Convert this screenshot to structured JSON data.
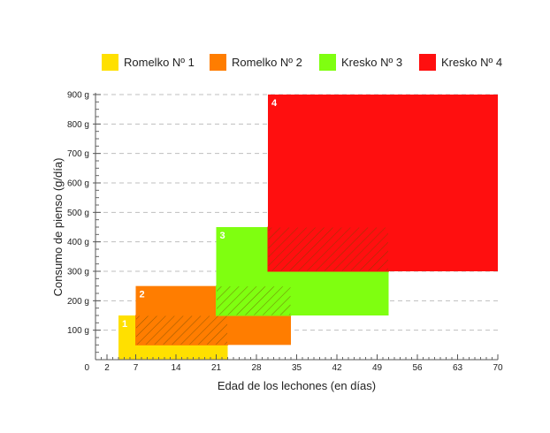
{
  "chart_data": {
    "type": "range-rectangles",
    "xlabel": "Edad de los lechones (en días)",
    "ylabel": "Consumo de pienso (g/día)",
    "xlim": [
      0,
      70
    ],
    "ylim": [
      0,
      900
    ],
    "x_ticks": [
      {
        "value": 2,
        "label": "2"
      },
      {
        "value": 7,
        "label": "7"
      },
      {
        "value": 14,
        "label": "14"
      },
      {
        "value": 21,
        "label": "21"
      },
      {
        "value": 28,
        "label": "28"
      },
      {
        "value": 35,
        "label": "35"
      },
      {
        "value": 42,
        "label": "42"
      },
      {
        "value": 49,
        "label": "49"
      },
      {
        "value": 56,
        "label": "56"
      },
      {
        "value": 63,
        "label": "63"
      },
      {
        "value": 70,
        "label": "70"
      }
    ],
    "x_origin_label": "0",
    "y_ticks": [
      {
        "value": 100,
        "label": "100 g"
      },
      {
        "value": 200,
        "label": "200 g"
      },
      {
        "value": 300,
        "label": "300 g"
      },
      {
        "value": 400,
        "label": "400 g"
      },
      {
        "value": 500,
        "label": "500 g"
      },
      {
        "value": 600,
        "label": "600 g"
      },
      {
        "value": 700,
        "label": "700 g"
      },
      {
        "value": 800,
        "label": "800 g"
      },
      {
        "value": 900,
        "label": "900 g"
      }
    ],
    "grid": "horizontal dashed",
    "legend_position": "top",
    "series": [
      {
        "name": "Romelko Nº 1",
        "badge": "1",
        "color": "#ffe000",
        "x": [
          4,
          23
        ],
        "y": [
          0,
          150
        ]
      },
      {
        "name": "Romelko Nº 2",
        "badge": "2",
        "color": "#ff7d00",
        "x": [
          7,
          34
        ],
        "y": [
          50,
          250
        ]
      },
      {
        "name": "Kresko Nº 3",
        "badge": "3",
        "color": "#7fff10",
        "x": [
          21,
          51
        ],
        "y": [
          150,
          450
        ]
      },
      {
        "name": "Kresko Nº 4",
        "badge": "4",
        "color": "#ff0f0f",
        "x": [
          30,
          70
        ],
        "y": [
          300,
          900
        ]
      }
    ]
  }
}
